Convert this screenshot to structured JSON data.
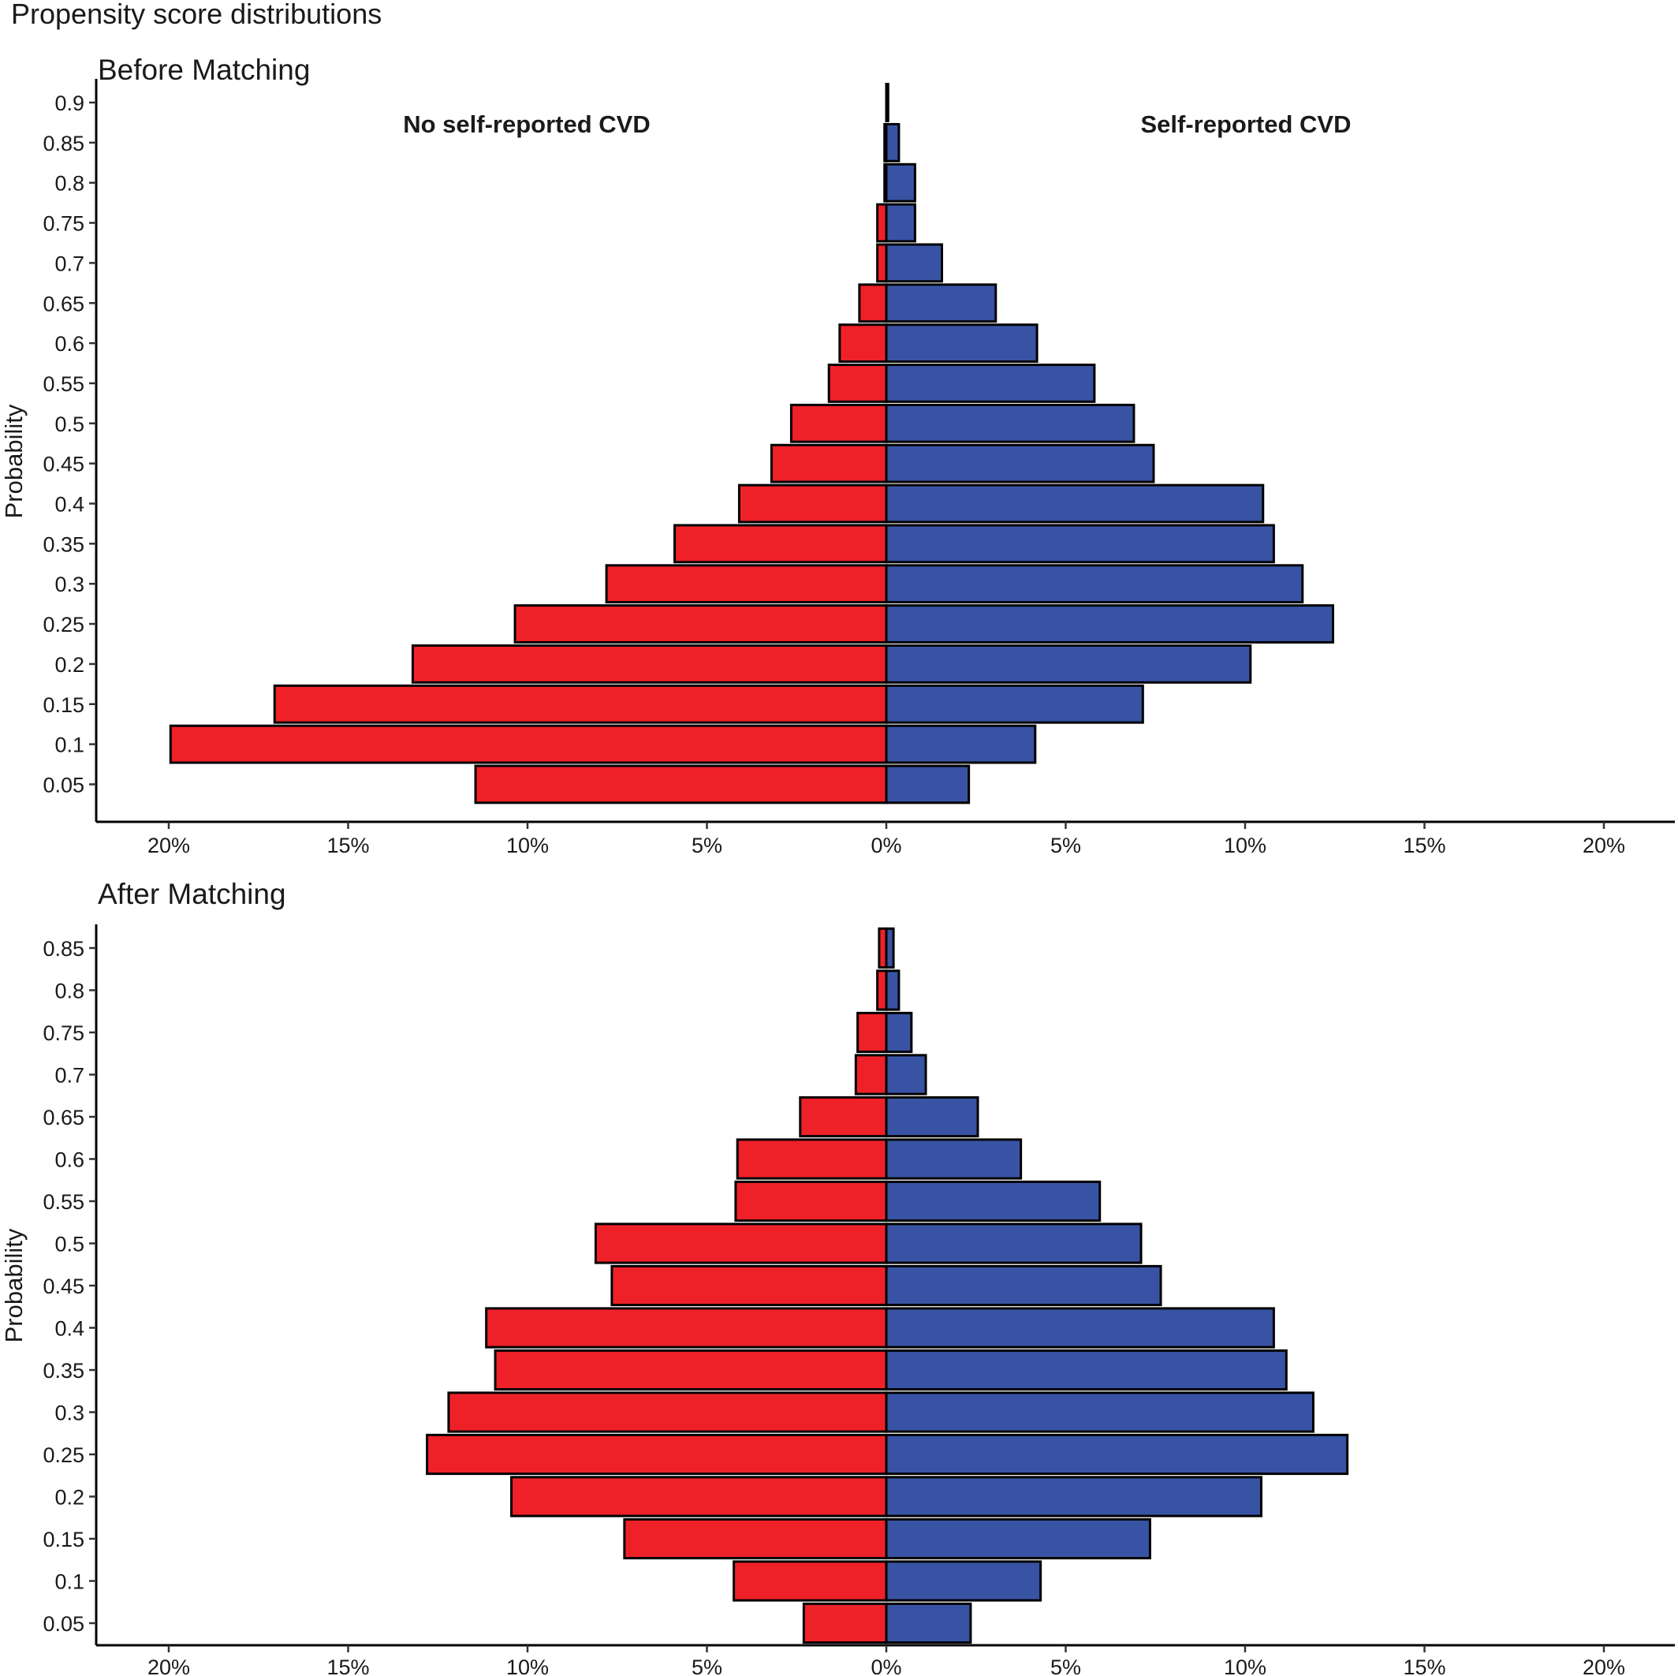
{
  "title": "Propensity score distributions",
  "colors": {
    "left_bar": "#ee2129",
    "right_bar": "#3953a4",
    "outline": "#000000"
  },
  "chart_data": [
    {
      "type": "bar",
      "orientation": "horizontal-diverging",
      "title": "Before Matching",
      "ylabel": "Probability",
      "xlabel": "",
      "xlim": [
        -20,
        20
      ],
      "x_unit": "%",
      "x_ticks": [
        -20,
        -15,
        -10,
        -5,
        0,
        5,
        10,
        15,
        20
      ],
      "x_tick_labels": [
        "20%",
        "15%",
        "10%",
        "5%",
        "0%",
        "5%",
        "10%",
        "15%",
        "20%"
      ],
      "categories": [
        "0.05",
        "0.1",
        "0.15",
        "0.2",
        "0.25",
        "0.3",
        "0.35",
        "0.4",
        "0.45",
        "0.5",
        "0.55",
        "0.6",
        "0.65",
        "0.7",
        "0.75",
        "0.8",
        "0.85",
        "0.9"
      ],
      "series": [
        {
          "name": "No self-reported CVD",
          "side": "left",
          "values": [
            11.45,
            19.95,
            17.05,
            13.2,
            10.35,
            7.8,
            5.9,
            4.1,
            3.2,
            2.65,
            1.6,
            1.3,
            0.75,
            0.25,
            0.25,
            0.05,
            0.05,
            0.0
          ]
        },
        {
          "name": "Self-reported CVD",
          "side": "right",
          "values": [
            2.3,
            4.15,
            7.15,
            10.15,
            12.45,
            11.6,
            10.8,
            10.5,
            7.45,
            6.9,
            5.8,
            4.2,
            3.05,
            1.55,
            0.8,
            0.8,
            0.35,
            0.05
          ]
        }
      ],
      "annotations": [
        "No self-reported CVD",
        "Self-reported CVD"
      ],
      "grid": false,
      "legend": "none"
    },
    {
      "type": "bar",
      "orientation": "horizontal-diverging",
      "title": "After Matching",
      "ylabel": "Probability",
      "xlabel": "",
      "xlim": [
        -20,
        20
      ],
      "x_unit": "%",
      "x_ticks": [
        -20,
        -15,
        -10,
        -5,
        0,
        5,
        10,
        15,
        20
      ],
      "x_tick_labels": [
        "20%",
        "15%",
        "10%",
        "5%",
        "0%",
        "5%",
        "10%",
        "15%",
        "20%"
      ],
      "categories": [
        "0.05",
        "0.1",
        "0.15",
        "0.2",
        "0.25",
        "0.3",
        "0.35",
        "0.4",
        "0.45",
        "0.5",
        "0.55",
        "0.6",
        "0.65",
        "0.7",
        "0.75",
        "0.8",
        "0.85"
      ],
      "series": [
        {
          "name": "No self-reported CVD",
          "side": "left",
          "values": [
            2.3,
            4.25,
            7.3,
            10.45,
            12.8,
            12.2,
            10.9,
            11.15,
            7.65,
            8.1,
            4.2,
            4.15,
            2.4,
            0.85,
            0.8,
            0.25,
            0.2
          ]
        },
        {
          "name": "Self-reported CVD",
          "side": "right",
          "values": [
            2.35,
            4.3,
            7.35,
            10.45,
            12.85,
            11.9,
            11.15,
            10.8,
            7.65,
            7.1,
            5.95,
            3.75,
            2.55,
            1.1,
            0.7,
            0.35,
            0.2
          ]
        }
      ],
      "grid": false,
      "legend": "none"
    }
  ]
}
